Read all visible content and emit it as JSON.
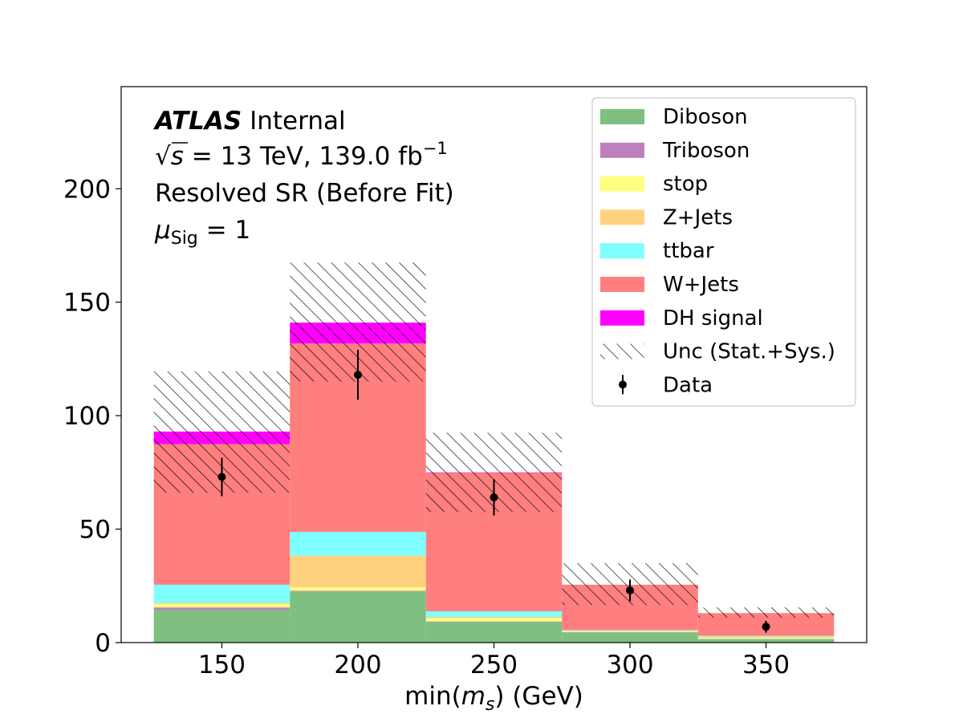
{
  "chart_data": {
    "type": "bar",
    "stacked": true,
    "histogram": true,
    "bin_edges": [
      125,
      175,
      225,
      275,
      325,
      375
    ],
    "categories": [
      "150",
      "200",
      "250",
      "300",
      "350"
    ],
    "series": [
      {
        "name": "Diboson",
        "color": "#7fbf7f",
        "values": [
          14.5,
          22.5,
          9.0,
          4.5,
          1.5
        ]
      },
      {
        "name": "Triboson",
        "color": "#bf7fbf",
        "values": [
          1.0,
          0.3,
          0.3,
          0.1,
          0.1
        ]
      },
      {
        "name": "stop",
        "color": "#ffff7f",
        "values": [
          1.5,
          1.5,
          1.5,
          0.3,
          0.5
        ]
      },
      {
        "name": "Z+Jets",
        "color": "#ffd27f",
        "values": [
          0.5,
          14.0,
          0.5,
          0.3,
          0.5
        ]
      },
      {
        "name": "ttbar",
        "color": "#7fffff",
        "values": [
          8.0,
          10.5,
          2.5,
          0.3,
          0.4
        ]
      },
      {
        "name": "W+Jets",
        "color": "#ff7f7f",
        "values": [
          62.0,
          83.0,
          61.0,
          20.0,
          10.0
        ]
      },
      {
        "name": "DH signal",
        "color": "#ff00ff",
        "values": [
          5.5,
          9.2,
          0.2,
          0.0,
          0.0
        ]
      }
    ],
    "uncertainty": {
      "name": "Unc (Stat.+Sys.)",
      "low": [
        66,
        115,
        57.5,
        16.5,
        11
      ],
      "high": [
        119.5,
        167.5,
        92.5,
        35,
        15.5
      ]
    },
    "data": {
      "name": "Data",
      "x": [
        150,
        200,
        250,
        300,
        350
      ],
      "y": [
        73,
        118,
        64,
        23,
        7
      ],
      "err": [
        8.5,
        11,
        8,
        4.8,
        2.6
      ]
    },
    "xlabel": "min(",
    "xlabel_sym": "m",
    "xlabel_sub": "s",
    "xlabel_tail": ") (GeV)",
    "ylabel": "",
    "xlim": [
      113,
      387
    ],
    "ylim": [
      0,
      245
    ],
    "xticks": [
      150,
      200,
      250,
      300,
      350
    ],
    "yticks": [
      0,
      50,
      100,
      150,
      200
    ],
    "grid": false,
    "legend_position": "top-right"
  },
  "annotations": {
    "experiment": "ATLAS",
    "status": " Internal",
    "sqrt_s": "s",
    "energy_lumi": " = 13 TeV, 139.0 fb",
    "lumi_exp": "−1",
    "region": "Resolved SR (Before Fit)",
    "mu": "μ",
    "mu_sub": "Sig",
    "mu_val": " = 1"
  },
  "legend": [
    {
      "label": "Diboson",
      "kind": "patch",
      "color": "#7fbf7f"
    },
    {
      "label": "Triboson",
      "kind": "patch",
      "color": "#bf7fbf"
    },
    {
      "label": "stop",
      "kind": "patch",
      "color": "#ffff7f"
    },
    {
      "label": "Z+Jets",
      "kind": "patch",
      "color": "#ffd27f"
    },
    {
      "label": "ttbar",
      "kind": "patch",
      "color": "#7fffff"
    },
    {
      "label": "W+Jets",
      "kind": "patch",
      "color": "#ff7f7f"
    },
    {
      "label": "DH signal",
      "kind": "patch",
      "color": "#ff00ff"
    },
    {
      "label": "Unc (Stat.+Sys.)",
      "kind": "hatch",
      "color": "#000000"
    },
    {
      "label": "Data",
      "kind": "errorbar",
      "color": "#000000"
    }
  ]
}
